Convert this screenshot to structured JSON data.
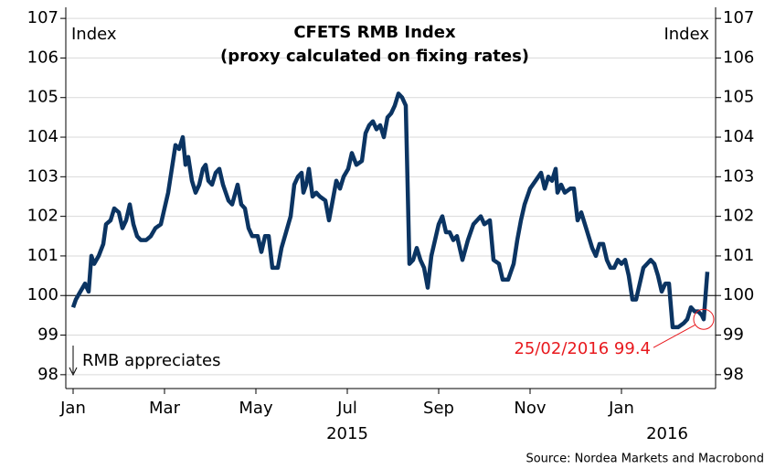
{
  "chart_data": {
    "type": "line",
    "title": "CFETS RMB Index",
    "subtitle": "(proxy calculated on fixing rates)",
    "y_label": "Index",
    "y2_label": "Index",
    "source": "Source: Nordea Markets and Macrobond",
    "xlim": [
      -0.16,
      14.06
    ],
    "xticks": [
      {
        "value": 0,
        "label": "Jan"
      },
      {
        "value": 2,
        "label": "Mar"
      },
      {
        "value": 4,
        "label": "May"
      },
      {
        "value": 6,
        "label": "Jul"
      },
      {
        "value": 8,
        "label": "Sep"
      },
      {
        "value": 10,
        "label": "Nov"
      },
      {
        "value": 12,
        "label": "Jan"
      }
    ],
    "year_labels": [
      {
        "value": 6,
        "label": "2015"
      },
      {
        "value": 13,
        "label": "2016"
      }
    ],
    "ylim": [
      97.65,
      107.28
    ],
    "yticks": [
      98,
      99,
      100,
      101,
      102,
      103,
      104,
      105,
      106,
      107
    ],
    "y2lim": [
      97.65,
      107.28
    ],
    "y2ticks": [
      98,
      99,
      100,
      101,
      102,
      103,
      104,
      105,
      106,
      107
    ],
    "grid": true,
    "reference_line": 100,
    "arrow_note": "RMB appreciates",
    "annotation": {
      "label": "25/02/2016 99.4",
      "x": 13.8,
      "y": 99.4,
      "color": "#e8191e"
    },
    "series": [
      {
        "name": "CFETS RMB Index",
        "color": "#0b3462",
        "x": [
          0,
          0.06,
          0.16,
          0.26,
          0.34,
          0.4,
          0.46,
          0.56,
          0.66,
          0.72,
          0.82,
          0.9,
          1.0,
          1.08,
          1.16,
          1.24,
          1.32,
          1.4,
          1.48,
          1.6,
          1.7,
          1.8,
          1.92,
          2.02,
          2.08,
          2.16,
          2.24,
          2.32,
          2.4,
          2.46,
          2.52,
          2.6,
          2.68,
          2.76,
          2.84,
          2.9,
          2.96,
          3.04,
          3.12,
          3.2,
          3.28,
          3.4,
          3.48,
          3.6,
          3.68,
          3.76,
          3.84,
          3.92,
          4.04,
          4.12,
          4.2,
          4.28,
          4.36,
          4.48,
          4.56,
          4.66,
          4.76,
          4.84,
          4.92,
          5.0,
          5.04,
          5.1,
          5.16,
          5.24,
          5.32,
          5.4,
          5.52,
          5.6,
          5.68,
          5.76,
          5.84,
          5.92,
          6.02,
          6.1,
          6.2,
          6.32,
          6.4,
          6.48,
          6.56,
          6.64,
          6.72,
          6.8,
          6.88,
          6.96,
          7.04,
          7.12,
          7.2,
          7.28,
          7.36,
          7.44,
          7.52,
          7.6,
          7.68,
          7.76,
          7.84,
          7.92,
          8.0,
          8.08,
          8.16,
          8.24,
          8.32,
          8.4,
          8.52,
          8.64,
          8.76,
          8.84,
          8.92,
          9.0,
          9.12,
          9.2,
          9.32,
          9.4,
          9.52,
          9.64,
          9.72,
          9.8,
          9.88,
          10.0,
          10.12,
          10.24,
          10.32,
          10.4,
          10.48,
          10.56,
          10.6,
          10.68,
          10.76,
          10.88,
          10.96,
          11.04,
          11.12,
          11.2,
          11.28,
          11.36,
          11.44,
          11.52,
          11.6,
          11.68,
          11.76,
          11.84,
          11.92,
          12.0,
          12.08,
          12.16,
          12.24,
          12.32,
          12.4,
          12.48,
          12.56,
          12.64,
          12.72,
          12.8,
          12.88,
          12.96,
          13.04,
          13.12,
          13.24,
          13.36,
          13.44,
          13.52,
          13.6,
          13.68,
          13.76,
          13.8,
          13.88
        ],
        "values": [
          99.7,
          99.9,
          100.1,
          100.3,
          100.1,
          101.0,
          100.8,
          101.0,
          101.3,
          101.8,
          101.9,
          102.2,
          102.1,
          101.7,
          101.9,
          102.3,
          101.8,
          101.5,
          101.4,
          101.4,
          101.5,
          101.7,
          101.8,
          102.3,
          102.6,
          103.2,
          103.8,
          103.7,
          104.0,
          103.3,
          103.5,
          102.9,
          102.6,
          102.8,
          103.2,
          103.3,
          102.9,
          102.8,
          103.1,
          103.2,
          102.8,
          102.4,
          102.3,
          102.8,
          102.3,
          102.2,
          101.7,
          101.5,
          101.5,
          101.1,
          101.5,
          101.5,
          100.7,
          100.7,
          101.2,
          101.6,
          102.0,
          102.8,
          103.0,
          103.1,
          102.6,
          102.8,
          103.2,
          102.5,
          102.6,
          102.5,
          102.4,
          101.9,
          102.4,
          102.9,
          102.7,
          103.0,
          103.2,
          103.6,
          103.3,
          103.4,
          104.1,
          104.3,
          104.4,
          104.2,
          104.3,
          104.0,
          104.5,
          104.6,
          104.8,
          105.1,
          105.0,
          104.8,
          100.8,
          100.9,
          101.2,
          100.9,
          100.7,
          100.2,
          101.0,
          101.4,
          101.8,
          102.0,
          101.6,
          101.6,
          101.4,
          101.5,
          100.9,
          101.4,
          101.8,
          101.9,
          102.0,
          101.8,
          101.9,
          100.9,
          100.8,
          100.4,
          100.4,
          100.8,
          101.4,
          101.9,
          102.3,
          102.7,
          102.9,
          103.1,
          102.7,
          103.0,
          102.9,
          103.2,
          102.6,
          102.8,
          102.6,
          102.7,
          102.7,
          101.9,
          102.1,
          101.8,
          101.5,
          101.2,
          101.0,
          101.3,
          101.3,
          100.9,
          100.7,
          100.7,
          100.9,
          100.8,
          100.9,
          100.5,
          99.9,
          99.9,
          100.3,
          100.7,
          100.8,
          100.9,
          100.8,
          100.5,
          100.1,
          100.3,
          100.3,
          99.2,
          99.2,
          99.3,
          99.4,
          99.7,
          99.6,
          99.6,
          99.5,
          99.4,
          100.6
        ]
      }
    ]
  }
}
